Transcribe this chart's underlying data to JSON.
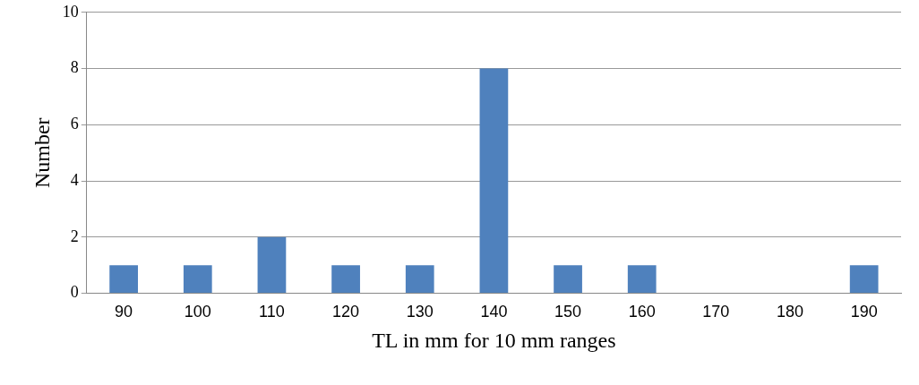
{
  "chart_data": {
    "type": "bar",
    "xlabel": "TL in mm for 10 mm ranges",
    "ylabel": "Number",
    "categories": [
      "90",
      "100",
      "110",
      "120",
      "130",
      "140",
      "150",
      "160",
      "170",
      "180",
      "190"
    ],
    "values": [
      1,
      1,
      2,
      1,
      1,
      8,
      1,
      1,
      0,
      0,
      1
    ],
    "color": "#4f81bd",
    "ylim": [
      0,
      10
    ],
    "yticks": [
      0,
      2,
      4,
      6,
      8,
      10
    ],
    "grid": "y",
    "legend": false
  }
}
